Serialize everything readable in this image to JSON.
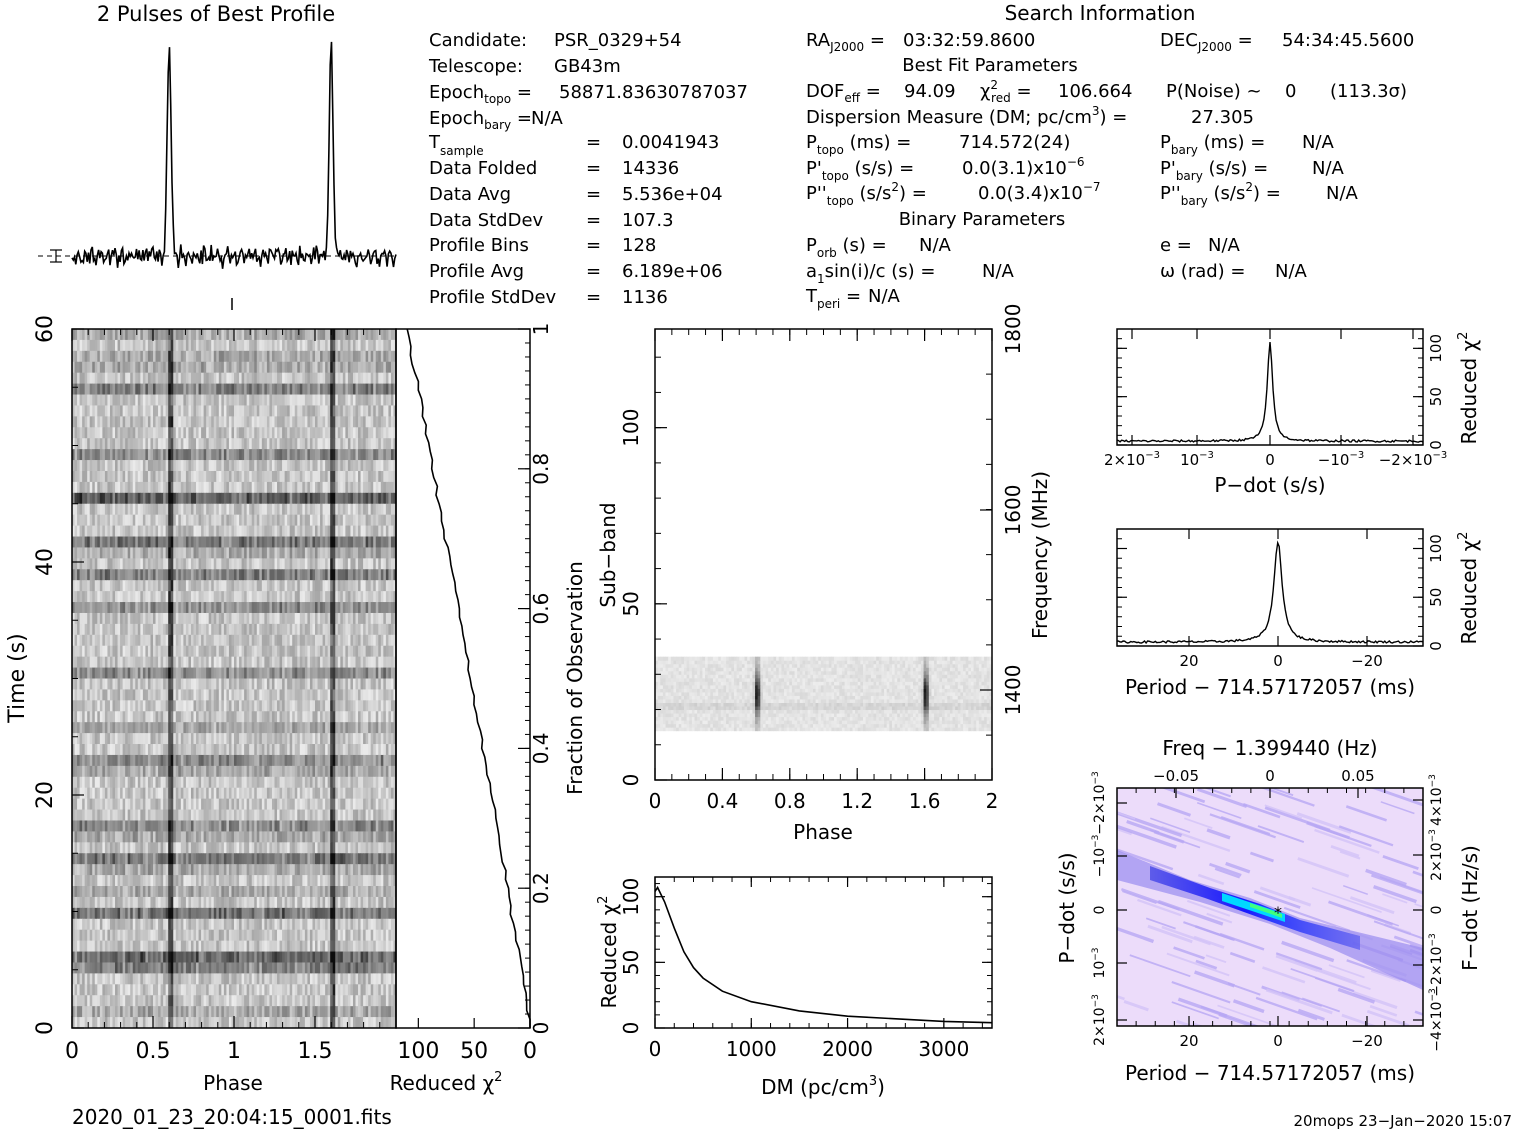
{
  "profile": {
    "title": "2 Pulses of Best Profile"
  },
  "info": {
    "candidate_label": "Candidate:",
    "candidate": "PSR_0329+54",
    "telescope_label": "Telescope:",
    "telescope": "GB43m",
    "epoch_topo": "58871.83630787037",
    "epoch_bary": "N/A",
    "t_sample": "0.0041943",
    "data_folded_label": "Data Folded",
    "data_folded": "14336",
    "data_avg_label": "Data Avg",
    "data_avg": "5.536e+04",
    "data_stddev_label": "Data StdDev",
    "data_stddev": "107.3",
    "profile_bins_label": "Profile Bins",
    "profile_bins": "128",
    "profile_avg_label": "Profile Avg",
    "profile_avg": "6.189e+06",
    "profile_stddev_label": "Profile StdDev",
    "profile_stddev": "1136"
  },
  "search": {
    "title": "Search Information",
    "ra": "03:32:59.8600",
    "dec": "54:34:45.5600",
    "best_fit_title": "Best Fit Parameters",
    "dof_eff": "94.09",
    "chi2_red": "106.664",
    "p_noise": "0",
    "sigma": "(113.3σ)",
    "dm_label": "Dispersion Measure (DM; pc/cm",
    "dm_value": "27.305",
    "p_topo": "714.572(24)",
    "p_bary": "N/A",
    "pd_topo": "0.0(3.1)x10",
    "pd_topo_exp": "−6",
    "pd_bary": "N/A",
    "pdd_topo": "0.0(3.4)x10",
    "pdd_topo_exp": "−7",
    "pdd_bary": "N/A",
    "binary_title": "Binary Parameters",
    "p_orb": "N/A",
    "e": "N/A",
    "a1sini": "N/A",
    "omega": "N/A",
    "t_peri": "N/A"
  },
  "footer": {
    "filename": "2020_01_23_20:04:15_0001.fits",
    "stamp": "20mops 23−Jan−2020 15:07"
  },
  "colors": {
    "axis": "#000000",
    "gray_dark": "#202020",
    "gray_light": "#f4f4f4",
    "blue": "#2020ff",
    "cyan": "#00e0ff",
    "lavender": "#e8d6f8"
  },
  "chart_data": [
    {
      "id": "profile",
      "type": "line",
      "title": "2 Pulses of Best Profile",
      "x_range": [
        0,
        2
      ],
      "pulse_phases": [
        0.6,
        1.6
      ]
    },
    {
      "id": "time_phase",
      "type": "heatmap",
      "xlabel": "Phase",
      "ylabel": "Time (s)",
      "xlim": [
        0,
        2
      ],
      "ylim": [
        0,
        60
      ],
      "x_ticks": [
        "0",
        "0.5",
        "1",
        "1.5"
      ],
      "y_ticks": [
        "0",
        "20",
        "40",
        "60"
      ],
      "pulse_phases": [
        0.6,
        1.6
      ]
    },
    {
      "id": "chi2_vs_time",
      "type": "line",
      "xlabel": "Reduced χ",
      "ylabel": "Fraction of Observation",
      "x_ticks": [
        "100",
        "50",
        "0"
      ],
      "y_ticks": [
        "0",
        "0.2",
        "0.4",
        "0.6",
        "0.8",
        "1"
      ]
    },
    {
      "id": "subband_phase",
      "type": "heatmap",
      "xlabel": "Phase",
      "ylabel": "Sub−band",
      "y2label": "Frequency (MHz)",
      "xlim": [
        0,
        2
      ],
      "ylim": [
        0,
        128
      ],
      "x_ticks": [
        "0",
        "0.4",
        "0.8",
        "1.2",
        "1.6",
        "2"
      ],
      "y_ticks": [
        "0",
        "50",
        "100"
      ],
      "y2_ticks": [
        "1400",
        "1600",
        "1800"
      ],
      "data_band": [
        14,
        35
      ],
      "pulse_phases": [
        0.6,
        1.6
      ]
    },
    {
      "id": "dm_curve",
      "type": "line",
      "xlabel": "DM (pc/cm",
      "ylabel": "Reduced χ",
      "xlim": [
        0,
        3500
      ],
      "ylim": [
        0,
        115
      ],
      "x_ticks": [
        "0",
        "1000",
        "2000",
        "3000"
      ],
      "y_ticks": [
        "0",
        "50",
        "100"
      ],
      "x": [
        0,
        27,
        100,
        200,
        300,
        400,
        500,
        700,
        1000,
        1500,
        2000,
        2500,
        3000,
        3500
      ],
      "y": [
        104,
        107,
        96,
        76,
        58,
        46,
        38,
        28,
        20,
        13,
        9,
        7,
        5,
        4
      ]
    },
    {
      "id": "pdot_curve",
      "type": "line",
      "xlabel": "P−dot (s/s)",
      "ylabel": "Reduced χ",
      "x_ticks": [
        "2×10",
        "10",
        "0",
        "−10",
        "−2×10"
      ],
      "x_tick_exp": "−3",
      "y_ticks": [
        "0",
        "50",
        "100"
      ],
      "peak": 106.7,
      "baseline": 4
    },
    {
      "id": "period_curve",
      "type": "line",
      "xlabel": "Period − 714.57172057 (ms)",
      "ylabel": "Reduced χ",
      "x_ticks": [
        "20",
        "0",
        "−20"
      ],
      "y_ticks": [
        "0",
        "50",
        "100"
      ],
      "peak": 106.7,
      "baseline": 4
    },
    {
      "id": "ppdot_plane",
      "type": "heatmap",
      "title": "Freq − 1.399440 (Hz)",
      "xlabel": "Period − 714.57172057 (ms)",
      "ylabel": "P−dot (s/s)",
      "y2label": "F−dot (Hz/s)",
      "x_ticks": [
        "20",
        "0",
        "−20"
      ],
      "top_ticks": [
        "−0.05",
        "0",
        "0.05"
      ],
      "y_ticks": [
        "2×10",
        "10",
        "0",
        "−10",
        "−2×10"
      ],
      "y_tick_exp": "−3",
      "y2_ticks": [
        "−4×10",
        "−2×10",
        "0",
        "2×10",
        "4×10"
      ],
      "y2_tick_exp": "−3"
    }
  ]
}
